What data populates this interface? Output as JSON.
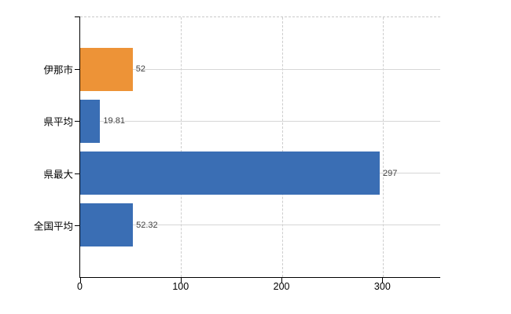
{
  "chart_data": {
    "type": "bar",
    "orientation": "horizontal",
    "title": "",
    "categories": [
      "伊那市",
      "県平均",
      "県最大",
      "全国平均"
    ],
    "values": [
      52,
      19.81,
      297,
      52.32
    ],
    "value_labels": [
      "52",
      "19.81",
      "297",
      "52.32"
    ],
    "bar_colors": [
      "#ED9337",
      "#3A6EB4",
      "#3A6EB4",
      "#3A6EB4"
    ],
    "x_ticks": [
      0,
      100,
      200,
      300
    ],
    "x_tick_labels": [
      "0",
      "100",
      "200",
      "300"
    ],
    "xlim": [
      0,
      357
    ],
    "grid": true,
    "legend": false,
    "gridline_style": "horizontal solid, vertical dashed, top border dashed",
    "colors": {
      "highlight_bar": "#ED9337",
      "default_bar": "#3A6EB4",
      "gridline": "#D6D6D6",
      "gridline_dashed": "#CDCDCD",
      "axis": "#000000",
      "value_label_text": "#3F3F3F",
      "tick_label_text": "#000000",
      "background": "#FFFFFF"
    }
  }
}
